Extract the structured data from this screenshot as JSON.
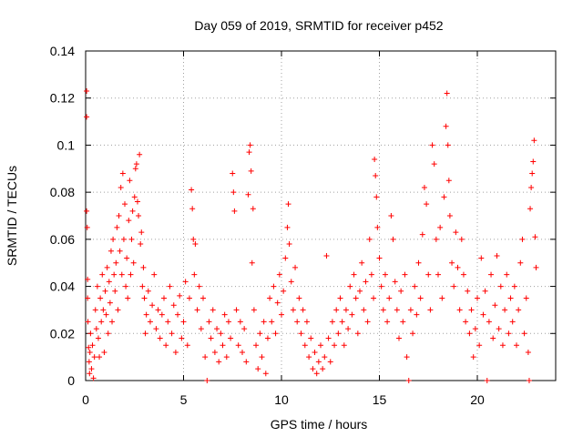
{
  "chart_data": {
    "type": "scatter",
    "title": "Day 059 of 2019, SRMTID for receiver p452",
    "xlabel": "GPS time / hours",
    "ylabel": "SRMTID / TECUs",
    "xlim": [
      0,
      24
    ],
    "ylim": [
      0,
      0.14
    ],
    "xticks": [
      0,
      5,
      10,
      15,
      20
    ],
    "xtick_labels": [
      "0",
      "5",
      "10",
      "15",
      "20"
    ],
    "yticks": [
      0,
      0.02,
      0.04,
      0.06,
      0.08,
      0.1,
      0.12,
      0.14
    ],
    "ytick_labels": [
      "0",
      "0.02",
      "0.04",
      "0.06",
      "0.08",
      "0.1",
      "0.12",
      "0.14"
    ],
    "grid": true,
    "marker": "+",
    "color": "#ff0000",
    "series": [
      {
        "name": "SRMTID",
        "points": [
          [
            0.05,
            0.123
          ],
          [
            0.05,
            0.112
          ],
          [
            0.05,
            0.072
          ],
          [
            0.08,
            0.065
          ],
          [
            0.1,
            0.043
          ],
          [
            0.1,
            0.035
          ],
          [
            0.12,
            0.025
          ],
          [
            0.15,
            0.014
          ],
          [
            0.18,
            0.008
          ],
          [
            0.2,
            0.003
          ],
          [
            0.22,
            0.012
          ],
          [
            0.25,
            0.02
          ],
          [
            0.3,
            0.005
          ],
          [
            0.35,
            0.015
          ],
          [
            0.4,
            0.001
          ],
          [
            0.45,
            0.01
          ],
          [
            0.5,
            0.03
          ],
          [
            0.55,
            0.022
          ],
          [
            0.6,
            0.04
          ],
          [
            0.65,
            0.018
          ],
          [
            0.7,
            0.01
          ],
          [
            0.75,
            0.035
          ],
          [
            0.8,
            0.025
          ],
          [
            0.85,
            0.045
          ],
          [
            0.9,
            0.03
          ],
          [
            0.95,
            0.012
          ],
          [
            1.0,
            0.038
          ],
          [
            1.05,
            0.028
          ],
          [
            1.1,
            0.048
          ],
          [
            1.15,
            0.02
          ],
          [
            1.2,
            0.042
          ],
          [
            1.25,
            0.033
          ],
          [
            1.3,
            0.055
          ],
          [
            1.35,
            0.025
          ],
          [
            1.4,
            0.06
          ],
          [
            1.45,
            0.045
          ],
          [
            1.5,
            0.038
          ],
          [
            1.55,
            0.05
          ],
          [
            1.6,
            0.065
          ],
          [
            1.65,
            0.03
          ],
          [
            1.7,
            0.07
          ],
          [
            1.75,
            0.055
          ],
          [
            1.8,
            0.082
          ],
          [
            1.85,
            0.045
          ],
          [
            1.9,
            0.088
          ],
          [
            1.95,
            0.06
          ],
          [
            2.0,
            0.075
          ],
          [
            2.05,
            0.04
          ],
          [
            2.1,
            0.052
          ],
          [
            2.15,
            0.035
          ],
          [
            2.2,
            0.068
          ],
          [
            2.25,
            0.085
          ],
          [
            2.3,
            0.045
          ],
          [
            2.35,
            0.06
          ],
          [
            2.4,
            0.072
          ],
          [
            2.45,
            0.05
          ],
          [
            2.5,
            0.078
          ],
          [
            2.55,
            0.09
          ],
          [
            2.6,
            0.092
          ],
          [
            2.65,
            0.076
          ],
          [
            2.7,
            0.07
          ],
          [
            2.75,
            0.096
          ],
          [
            2.8,
            0.058
          ],
          [
            2.85,
            0.063
          ],
          [
            2.9,
            0.04
          ],
          [
            2.95,
            0.048
          ],
          [
            3.0,
            0.035
          ],
          [
            3.05,
            0.02
          ],
          [
            3.1,
            0.028
          ],
          [
            3.2,
            0.038
          ],
          [
            3.3,
            0.025
          ],
          [
            3.4,
            0.032
          ],
          [
            3.5,
            0.045
          ],
          [
            3.6,
            0.022
          ],
          [
            3.7,
            0.03
          ],
          [
            3.8,
            0.018
          ],
          [
            3.9,
            0.028
          ],
          [
            4.0,
            0.035
          ],
          [
            4.1,
            0.015
          ],
          [
            4.2,
            0.025
          ],
          [
            4.3,
            0.04
          ],
          [
            4.4,
            0.02
          ],
          [
            4.5,
            0.032
          ],
          [
            4.6,
            0.012
          ],
          [
            4.7,
            0.028
          ],
          [
            4.8,
            0.036
          ],
          [
            4.9,
            0.018
          ],
          [
            5.0,
            0.025
          ],
          [
            5.1,
            0.042
          ],
          [
            5.2,
            0.015
          ],
          [
            5.3,
            0.035
          ],
          [
            5.4,
            0.081
          ],
          [
            5.45,
            0.073
          ],
          [
            5.5,
            0.06
          ],
          [
            5.55,
            0.045
          ],
          [
            5.6,
            0.058
          ],
          [
            5.7,
            0.03
          ],
          [
            5.8,
            0.04
          ],
          [
            5.9,
            0.022
          ],
          [
            6.0,
            0.035
          ],
          [
            6.1,
            0.01
          ],
          [
            6.2,
            0.0
          ],
          [
            6.3,
            0.025
          ],
          [
            6.4,
            0.018
          ],
          [
            6.5,
            0.03
          ],
          [
            6.6,
            0.012
          ],
          [
            6.7,
            0.022
          ],
          [
            6.8,
            0.008
          ],
          [
            6.9,
            0.02
          ],
          [
            7.0,
            0.015
          ],
          [
            7.1,
            0.028
          ],
          [
            7.2,
            0.01
          ],
          [
            7.3,
            0.025
          ],
          [
            7.4,
            0.018
          ],
          [
            7.5,
            0.088
          ],
          [
            7.55,
            0.08
          ],
          [
            7.6,
            0.072
          ],
          [
            7.7,
            0.03
          ],
          [
            7.8,
            0.015
          ],
          [
            7.9,
            0.025
          ],
          [
            8.0,
            0.012
          ],
          [
            8.1,
            0.022
          ],
          [
            8.2,
            0.008
          ],
          [
            8.3,
            0.079
          ],
          [
            8.35,
            0.097
          ],
          [
            8.4,
            0.1
          ],
          [
            8.45,
            0.089
          ],
          [
            8.5,
            0.05
          ],
          [
            8.55,
            0.073
          ],
          [
            8.6,
            0.03
          ],
          [
            8.7,
            0.015
          ],
          [
            8.8,
            0.005
          ],
          [
            8.9,
            0.02
          ],
          [
            9.0,
            0.01
          ],
          [
            9.1,
            0.025
          ],
          [
            9.2,
            0.003
          ],
          [
            9.3,
            0.018
          ],
          [
            9.4,
            0.035
          ],
          [
            9.5,
            0.025
          ],
          [
            9.6,
            0.04
          ],
          [
            9.7,
            0.02
          ],
          [
            9.8,
            0.033
          ],
          [
            9.9,
            0.045
          ],
          [
            10.0,
            0.028
          ],
          [
            10.1,
            0.038
          ],
          [
            10.2,
            0.052
          ],
          [
            10.3,
            0.065
          ],
          [
            10.35,
            0.075
          ],
          [
            10.4,
            0.058
          ],
          [
            10.5,
            0.042
          ],
          [
            10.6,
            0.03
          ],
          [
            10.7,
            0.048
          ],
          [
            10.8,
            0.025
          ],
          [
            10.9,
            0.035
          ],
          [
            11.0,
            0.02
          ],
          [
            11.1,
            0.03
          ],
          [
            11.2,
            0.015
          ],
          [
            11.3,
            0.025
          ],
          [
            11.4,
            0.01
          ],
          [
            11.5,
            0.018
          ],
          [
            11.6,
            0.005
          ],
          [
            11.7,
            0.012
          ],
          [
            11.8,
            0.003
          ],
          [
            11.9,
            0.008
          ],
          [
            12.0,
            0.015
          ],
          [
            12.1,
            0.005
          ],
          [
            12.2,
            0.01
          ],
          [
            12.3,
            0.053
          ],
          [
            12.4,
            0.018
          ],
          [
            12.5,
            0.008
          ],
          [
            12.6,
            0.025
          ],
          [
            12.7,
            0.015
          ],
          [
            12.8,
            0.03
          ],
          [
            12.9,
            0.02
          ],
          [
            13.0,
            0.035
          ],
          [
            13.1,
            0.025
          ],
          [
            13.2,
            0.015
          ],
          [
            13.3,
            0.03
          ],
          [
            13.4,
            0.022
          ],
          [
            13.5,
            0.04
          ],
          [
            13.6,
            0.028
          ],
          [
            13.7,
            0.045
          ],
          [
            13.8,
            0.035
          ],
          [
            13.9,
            0.02
          ],
          [
            14.0,
            0.038
          ],
          [
            14.1,
            0.05
          ],
          [
            14.2,
            0.03
          ],
          [
            14.3,
            0.042
          ],
          [
            14.4,
            0.025
          ],
          [
            14.5,
            0.06
          ],
          [
            14.6,
            0.045
          ],
          [
            14.7,
            0.035
          ],
          [
            14.75,
            0.094
          ],
          [
            14.8,
            0.087
          ],
          [
            14.85,
            0.078
          ],
          [
            14.9,
            0.065
          ],
          [
            15.0,
            0.052
          ],
          [
            15.1,
            0.04
          ],
          [
            15.2,
            0.03
          ],
          [
            15.3,
            0.045
          ],
          [
            15.4,
            0.025
          ],
          [
            15.5,
            0.035
          ],
          [
            15.6,
            0.07
          ],
          [
            15.7,
            0.06
          ],
          [
            15.8,
            0.042
          ],
          [
            15.9,
            0.03
          ],
          [
            16.0,
            0.018
          ],
          [
            16.1,
            0.038
          ],
          [
            16.2,
            0.025
          ],
          [
            16.3,
            0.045
          ],
          [
            16.4,
            0.01
          ],
          [
            16.5,
            0.0
          ],
          [
            16.6,
            0.03
          ],
          [
            16.7,
            0.02
          ],
          [
            16.8,
            0.04
          ],
          [
            16.9,
            0.028
          ],
          [
            17.0,
            0.05
          ],
          [
            17.1,
            0.035
          ],
          [
            17.2,
            0.062
          ],
          [
            17.3,
            0.082
          ],
          [
            17.4,
            0.075
          ],
          [
            17.5,
            0.045
          ],
          [
            17.6,
            0.03
          ],
          [
            17.7,
            0.1
          ],
          [
            17.8,
            0.092
          ],
          [
            17.9,
            0.06
          ],
          [
            18.0,
            0.045
          ],
          [
            18.1,
            0.065
          ],
          [
            18.2,
            0.035
          ],
          [
            18.3,
            0.078
          ],
          [
            18.4,
            0.108
          ],
          [
            18.45,
            0.122
          ],
          [
            18.5,
            0.1
          ],
          [
            18.55,
            0.085
          ],
          [
            18.6,
            0.07
          ],
          [
            18.7,
            0.05
          ],
          [
            18.8,
            0.04
          ],
          [
            18.9,
            0.063
          ],
          [
            19.0,
            0.048
          ],
          [
            19.1,
            0.03
          ],
          [
            19.2,
            0.06
          ],
          [
            19.3,
            0.045
          ],
          [
            19.4,
            0.025
          ],
          [
            19.5,
            0.038
          ],
          [
            19.6,
            0.02
          ],
          [
            19.7,
            0.03
          ],
          [
            19.8,
            0.01
          ],
          [
            19.9,
            0.022
          ],
          [
            20.0,
            0.035
          ],
          [
            20.1,
            0.015
          ],
          [
            20.2,
            0.052
          ],
          [
            20.3,
            0.028
          ],
          [
            20.4,
            0.038
          ],
          [
            20.5,
            0.0
          ],
          [
            20.6,
            0.025
          ],
          [
            20.7,
            0.045
          ],
          [
            20.8,
            0.018
          ],
          [
            20.9,
            0.032
          ],
          [
            21.0,
            0.053
          ],
          [
            21.1,
            0.022
          ],
          [
            21.2,
            0.04
          ],
          [
            21.3,
            0.015
          ],
          [
            21.4,
            0.03
          ],
          [
            21.5,
            0.045
          ],
          [
            21.6,
            0.02
          ],
          [
            21.7,
            0.035
          ],
          [
            21.8,
            0.025
          ],
          [
            21.9,
            0.04
          ],
          [
            22.0,
            0.015
          ],
          [
            22.1,
            0.03
          ],
          [
            22.2,
            0.05
          ],
          [
            22.3,
            0.06
          ],
          [
            22.4,
            0.02
          ],
          [
            22.5,
            0.035
          ],
          [
            22.6,
            0.012
          ],
          [
            22.65,
            0.0
          ],
          [
            22.7,
            0.073
          ],
          [
            22.75,
            0.082
          ],
          [
            22.8,
            0.088
          ],
          [
            22.85,
            0.093
          ],
          [
            22.9,
            0.102
          ],
          [
            22.95,
            0.061
          ],
          [
            23.0,
            0.048
          ]
        ]
      }
    ]
  }
}
